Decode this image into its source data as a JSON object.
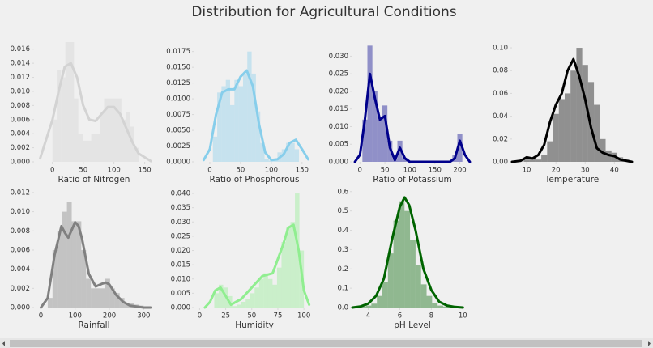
{
  "title": "Distribution for Agricultural Conditions",
  "chart_data": [
    {
      "type": "histogram",
      "xlabel": "Ratio of Nitrogen",
      "color": "#d3d3d3",
      "bins": [
        0,
        7,
        14,
        21,
        28,
        35,
        42,
        49,
        56,
        63,
        70,
        77,
        84,
        91,
        98,
        105,
        112,
        119,
        126,
        133,
        140
      ],
      "counts": [
        0.006,
        0.013,
        0.012,
        0.017,
        0.017,
        0.009,
        0.004,
        0.003,
        0.003,
        0.004,
        0.004,
        0.007,
        0.009,
        0.009,
        0.009,
        0.009,
        0.006,
        0.007,
        0.005,
        0.002
      ],
      "kde": {
        "x": [
          -20,
          0,
          10,
          20,
          30,
          40,
          50,
          60,
          70,
          80,
          90,
          100,
          110,
          120,
          130,
          140,
          160
        ],
        "values": [
          0.0005,
          0.006,
          0.01,
          0.0135,
          0.014,
          0.012,
          0.008,
          0.006,
          0.0058,
          0.0068,
          0.0078,
          0.0078,
          0.0068,
          0.0048,
          0.0028,
          0.0012,
          0.0001
        ]
      },
      "xlim": [
        -30,
        165
      ],
      "xticks": [
        0,
        50,
        100,
        150
      ],
      "ylim": [
        0,
        0.017
      ],
      "yticks": [
        {
          "value": 0,
          "label": "0.000"
        },
        0.002,
        0.004,
        0.006,
        0.008,
        {
          "value": 0.01,
          "label": "0.010"
        },
        0.012,
        0.014,
        0.016
      ]
    },
    {
      "type": "histogram",
      "xlabel": "Ratio of Phosphorous",
      "color": "#87ceeb",
      "bins": [
        5,
        12,
        19,
        26,
        33,
        40,
        47,
        54,
        61,
        68,
        75,
        82,
        89,
        96,
        103,
        110,
        117,
        124,
        131,
        138,
        145
      ],
      "counts": [
        0.004,
        0.011,
        0.012,
        0.013,
        0.009,
        0.013,
        0.012,
        0.014,
        0.0175,
        0.014,
        0.008,
        0.003,
        0.0005,
        0.0002,
        0.0005,
        0.0015,
        0.002,
        0.003,
        0.003,
        0.002
      ],
      "kde": {
        "x": [
          -10,
          0,
          10,
          20,
          30,
          40,
          50,
          60,
          70,
          80,
          90,
          100,
          110,
          120,
          130,
          140,
          150,
          160
        ],
        "values": [
          0.0003,
          0.002,
          0.0075,
          0.011,
          0.0115,
          0.0115,
          0.0135,
          0.0145,
          0.012,
          0.006,
          0.0015,
          0.0003,
          0.0004,
          0.0012,
          0.003,
          0.0035,
          0.002,
          0.0004
        ]
      },
      "xlim": [
        -25,
        170
      ],
      "xticks": [
        0,
        50,
        100,
        150
      ],
      "ylim": [
        0,
        0.019
      ],
      "yticks": [
        {
          "value": 0,
          "label": "0.0000"
        },
        0.0025,
        {
          "value": 0.005,
          "label": "0.0050"
        },
        0.0075,
        {
          "value": 0.01,
          "label": "0.0100"
        },
        0.0125,
        {
          "value": 0.015,
          "label": "0.0150"
        },
        0.0175
      ]
    },
    {
      "type": "histogram",
      "xlabel": "Ratio of Potassium",
      "color": "#00008b",
      "bins": [
        5,
        15,
        25,
        35,
        45,
        55,
        65,
        75,
        85,
        95,
        105,
        115,
        125,
        135,
        145,
        155,
        165,
        175,
        185,
        195,
        205
      ],
      "counts": [
        0.012,
        0.033,
        0.02,
        0.012,
        0.016,
        0.006,
        0.001,
        0.006,
        0.001,
        0,
        0,
        0,
        0,
        0,
        0,
        0,
        0,
        0,
        0.002,
        0.008
      ],
      "kde": {
        "x": [
          -10,
          0,
          10,
          20,
          30,
          40,
          50,
          60,
          70,
          80,
          90,
          100,
          120,
          140,
          160,
          180,
          190,
          200,
          210,
          220
        ],
        "values": [
          0,
          0.002,
          0.012,
          0.025,
          0.018,
          0.012,
          0.013,
          0.004,
          0.0005,
          0.004,
          0.001,
          0,
          0,
          0,
          0,
          0,
          0.001,
          0.006,
          0.002,
          0
        ]
      },
      "xlim": [
        -15,
        225
      ],
      "xticks": [
        0,
        50,
        100,
        150,
        200
      ],
      "ylim": [
        0,
        0.034
      ],
      "yticks": [
        {
          "value": 0,
          "label": "0.000"
        },
        0.005,
        {
          "value": 0.01,
          "label": "0.010"
        },
        0.015,
        {
          "value": 0.02,
          "label": "0.020"
        },
        0.025,
        {
          "value": 0.03,
          "label": "0.030"
        }
      ]
    },
    {
      "type": "histogram",
      "xlabel": "Temperature",
      "color": "#000000",
      "bins": [
        9,
        11,
        13,
        15,
        17,
        19,
        21,
        23,
        25,
        27,
        29,
        31,
        33,
        35,
        37,
        39,
        41,
        43,
        45
      ],
      "counts": [
        0.002,
        0.004,
        0.002,
        0.006,
        0.018,
        0.042,
        0.055,
        0.06,
        0.08,
        0.1,
        0.085,
        0.07,
        0.05,
        0.02,
        0.01,
        0.008,
        0.004,
        0.002
      ],
      "kde": {
        "x": [
          5,
          8,
          10,
          12,
          14,
          16,
          18,
          20,
          22,
          24,
          26,
          28,
          30,
          32,
          34,
          36,
          38,
          40,
          42,
          44,
          46
        ],
        "values": [
          0,
          0.001,
          0.004,
          0.003,
          0.006,
          0.015,
          0.035,
          0.05,
          0.06,
          0.08,
          0.09,
          0.075,
          0.055,
          0.03,
          0.012,
          0.008,
          0.006,
          0.005,
          0.002,
          0.001,
          0
        ]
      },
      "xlim": [
        5,
        46
      ],
      "xticks": [
        10,
        20,
        30,
        40
      ],
      "ylim": [
        0,
        0.105
      ],
      "yticks": [
        {
          "value": 0,
          "label": "0.00"
        },
        0.02,
        0.04,
        0.06,
        0.08,
        {
          "value": 0.1,
          "label": "0.10"
        }
      ]
    },
    {
      "type": "histogram",
      "xlabel": "Rainfall",
      "color": "#808080",
      "bins": [
        20,
        34,
        48,
        62,
        76,
        90,
        104,
        118,
        132,
        146,
        160,
        174,
        188,
        202,
        216,
        230,
        244,
        258,
        272,
        286,
        300
      ],
      "counts": [
        0.001,
        0.006,
        0.008,
        0.01,
        0.011,
        0.009,
        0.009,
        0.006,
        0.003,
        0.002,
        0.002,
        0.002,
        0.003,
        0.002,
        0.0015,
        0.001,
        0.0005,
        0.0005,
        0.0003,
        0.0002
      ],
      "kde": {
        "x": [
          0,
          20,
          40,
          60,
          70,
          80,
          100,
          110,
          120,
          140,
          160,
          180,
          190,
          200,
          220,
          240,
          260,
          280,
          300,
          320
        ],
        "values": [
          0,
          0.001,
          0.0055,
          0.0085,
          0.0078,
          0.0073,
          0.0089,
          0.0085,
          0.0072,
          0.0035,
          0.0022,
          0.0025,
          0.0026,
          0.0024,
          0.0013,
          0.0006,
          0.0002,
          0.0001,
          0,
          0
        ]
      },
      "xlim": [
        -20,
        330
      ],
      "xticks": [
        0,
        100,
        200,
        300
      ],
      "ylim": [
        0,
        0.0125
      ],
      "yticks": [
        {
          "value": 0,
          "label": "0.000"
        },
        0.002,
        0.004,
        0.006,
        0.008,
        {
          "value": 0.01,
          "label": "0.010"
        },
        0.012
      ]
    },
    {
      "type": "histogram",
      "xlabel": "Humidity",
      "color": "#90ee90",
      "bins": [
        14,
        18.3,
        22.6,
        26.9,
        31.2,
        35.5,
        39.8,
        44.1,
        48.4,
        52.7,
        57,
        61.3,
        65.6,
        69.9,
        74.2,
        78.5,
        82.8,
        87.1,
        91.4,
        95.7,
        100
      ],
      "counts": [
        0.005,
        0.008,
        0.007,
        0.004,
        0.0005,
        0.001,
        0.002,
        0.003,
        0.005,
        0.007,
        0.01,
        0.012,
        0.01,
        0.008,
        0.014,
        0.023,
        0.028,
        0.03,
        0.04,
        0.02
      ],
      "kde": {
        "x": [
          5,
          10,
          15,
          20,
          25,
          30,
          40,
          50,
          60,
          70,
          80,
          85,
          90,
          95,
          100,
          105
        ],
        "values": [
          0,
          0.002,
          0.006,
          0.007,
          0.004,
          0.001,
          0.003,
          0.007,
          0.011,
          0.012,
          0.022,
          0.028,
          0.029,
          0.02,
          0.006,
          0.001
        ]
      },
      "xlim": [
        -5,
        110
      ],
      "xticks": [
        0,
        25,
        50,
        75,
        100
      ],
      "ylim": [
        0,
        0.042
      ],
      "yticks": [
        {
          "value": 0,
          "label": "0.000"
        },
        0.005,
        {
          "value": 0.01,
          "label": "0.010"
        },
        0.015,
        {
          "value": 0.02,
          "label": "0.020"
        },
        0.025,
        {
          "value": 0.03,
          "label": "0.030"
        },
        0.035,
        {
          "value": 0.04,
          "label": "0.040"
        }
      ]
    },
    {
      "type": "histogram",
      "xlabel": "pH Level",
      "color": "#006400",
      "bins": [
        3.5,
        3.85,
        4.2,
        4.55,
        4.9,
        5.25,
        5.6,
        5.95,
        6.3,
        6.65,
        7,
        7.35,
        7.7,
        8.05,
        8.4,
        8.75,
        9.1,
        9.45,
        9.8
      ],
      "counts": [
        0.005,
        0.01,
        0.02,
        0.06,
        0.13,
        0.28,
        0.45,
        0.55,
        0.5,
        0.35,
        0.22,
        0.12,
        0.06,
        0.025,
        0.01,
        0.005,
        0.002,
        0.002
      ],
      "kde": {
        "x": [
          3,
          3.5,
          4,
          4.5,
          5,
          5.5,
          6,
          6.3,
          6.6,
          7,
          7.5,
          8,
          8.5,
          9,
          9.5,
          10
        ],
        "values": [
          0,
          0.005,
          0.02,
          0.06,
          0.15,
          0.35,
          0.52,
          0.57,
          0.53,
          0.4,
          0.2,
          0.09,
          0.03,
          0.01,
          0.003,
          0
        ]
      },
      "xlim": [
        3,
        10.6
      ],
      "xticks": [
        4,
        6,
        8,
        10
      ],
      "ylim": [
        0,
        0.62
      ],
      "yticks": [
        {
          "value": 0,
          "label": "0.0"
        },
        0.1,
        0.2,
        0.3,
        0.4,
        0.5,
        0.6
      ]
    }
  ]
}
